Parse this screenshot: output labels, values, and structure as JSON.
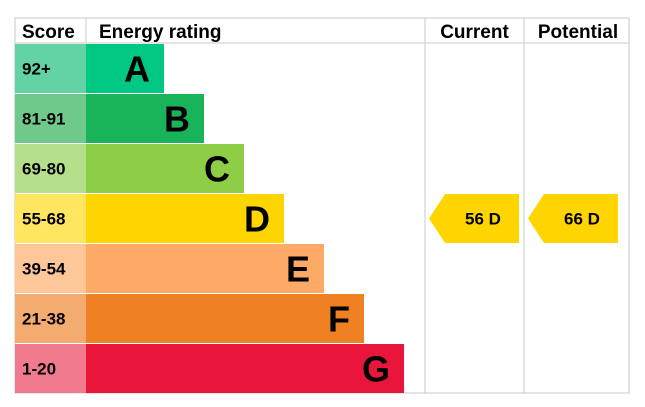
{
  "chart_data": {
    "type": "bar",
    "headers": {
      "score": "Score",
      "rating": "Energy rating",
      "current": "Current",
      "potential": "Potential"
    },
    "bands": [
      {
        "range": "92+",
        "letter": "A",
        "bar_color": "#00c781",
        "score_color": "#63d3a6",
        "letter_color": "#000000"
      },
      {
        "range": "81-91",
        "letter": "B",
        "bar_color": "#19b459",
        "score_color": "#6fc98b",
        "letter_color": "#000000"
      },
      {
        "range": "69-80",
        "letter": "C",
        "bar_color": "#8dce46",
        "score_color": "#b6df8c",
        "letter_color": "#000000"
      },
      {
        "range": "55-68",
        "letter": "D",
        "bar_color": "#ffd500",
        "score_color": "#ffe560",
        "letter_color": "#000000"
      },
      {
        "range": "39-54",
        "letter": "E",
        "bar_color": "#fcaa65",
        "score_color": "#fdc79a",
        "letter_color": "#000000"
      },
      {
        "range": "21-38",
        "letter": "F",
        "bar_color": "#ef8023",
        "score_color": "#f4ab70",
        "letter_color": "#000000"
      },
      {
        "range": "1-20",
        "letter": "G",
        "bar_color": "#e9153b",
        "score_color": "#f07a8e",
        "letter_color": "#000000"
      }
    ],
    "current": {
      "value": 56,
      "letter": "D",
      "label": "56  D",
      "color": "#ffd500"
    },
    "potential": {
      "value": 66,
      "letter": "D",
      "label": "66  D",
      "color": "#ffd500"
    }
  }
}
